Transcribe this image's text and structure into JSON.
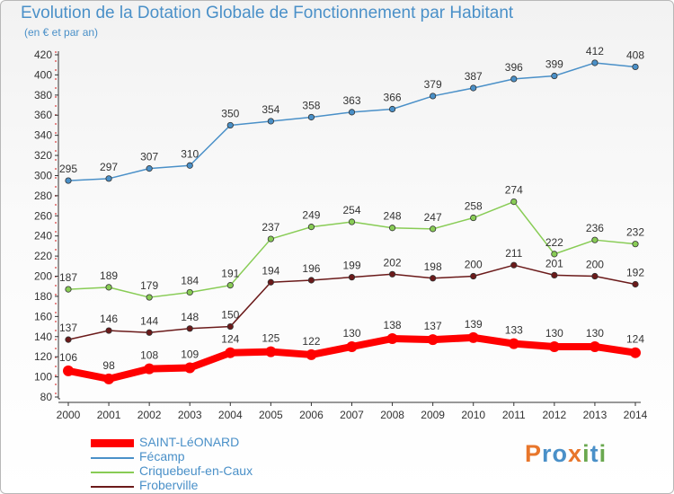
{
  "chart_data": {
    "type": "line",
    "title": "Evolution de la Dotation Globale de Fonctionnement par Habitant",
    "subtitle": "(en € et par an)",
    "categories": [
      "2000",
      "2001",
      "2002",
      "2003",
      "2004",
      "2005",
      "2006",
      "2007",
      "2008",
      "2009",
      "2010",
      "2011",
      "2012",
      "2013",
      "2014"
    ],
    "ylim": [
      80,
      420
    ],
    "ytick_step": 20,
    "grid": false,
    "legend_position": "bottom-left",
    "series": [
      {
        "name": "SAINT-LéONARD",
        "color": "#ff0000",
        "emphasis": true,
        "values": [
          106,
          98,
          108,
          109,
          124,
          125,
          122,
          130,
          138,
          137,
          139,
          133,
          130,
          130,
          124
        ]
      },
      {
        "name": "Fécamp",
        "color": "#4a90c8",
        "emphasis": false,
        "values": [
          295,
          297,
          307,
          310,
          350,
          354,
          358,
          363,
          366,
          379,
          387,
          396,
          399,
          412,
          408
        ]
      },
      {
        "name": "Criquebeuf-en-Caux",
        "color": "#88cc55",
        "emphasis": false,
        "values": [
          187,
          189,
          179,
          184,
          191,
          237,
          249,
          254,
          248,
          247,
          258,
          274,
          222,
          236,
          232
        ]
      },
      {
        "name": "Froberville",
        "color": "#6b1a1a",
        "emphasis": false,
        "values": [
          137,
          146,
          144,
          148,
          150,
          194,
          196,
          199,
          202,
          198,
          200,
          211,
          201,
          200,
          192
        ]
      }
    ]
  },
  "brand": {
    "letters": [
      {
        "char": "P",
        "color": "#e8762b"
      },
      {
        "char": "r",
        "color": "#4a90c8"
      },
      {
        "char": "o",
        "color": "#4a90c8"
      },
      {
        "char": "x",
        "color": "#e8762b"
      },
      {
        "char": "i",
        "color": "#6aa84f"
      },
      {
        "char": "t",
        "color": "#4a90c8"
      },
      {
        "char": "i",
        "color": "#6aa84f"
      }
    ]
  }
}
